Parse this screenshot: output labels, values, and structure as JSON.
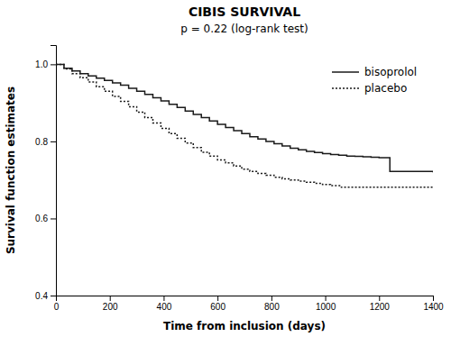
{
  "chart_data": {
    "type": "step",
    "title": "CIBIS SURVIVAL",
    "subtitle": "p = 0.22 (log-rank test)",
    "x_label": "Time from inclusion (days)",
    "y_label": "Survival function estimates",
    "xlim": [
      0,
      1400
    ],
    "ylim": [
      0.4,
      1.05
    ],
    "xticks": [
      0,
      200,
      400,
      600,
      800,
      1000,
      1200,
      1400
    ],
    "yticks": [
      0.4,
      0.6,
      0.8,
      {
        "value": 1,
        "label": "1.0"
      }
    ],
    "grid": false,
    "legend": "upper right",
    "series": [
      {
        "name": "bisoprolol",
        "color": "#1a1a1a",
        "line_style": "solid",
        "x": [
          0,
          30,
          60,
          90,
          120,
          150,
          180,
          210,
          240,
          270,
          300,
          330,
          360,
          390,
          420,
          450,
          480,
          510,
          540,
          570,
          600,
          630,
          660,
          690,
          720,
          750,
          780,
          810,
          840,
          870,
          900,
          930,
          960,
          990,
          1020,
          1050,
          1080,
          1110,
          1140,
          1170,
          1200,
          1240,
          1400
        ],
        "values": [
          1.0,
          0.99,
          0.983,
          0.976,
          0.97,
          0.964,
          0.958,
          0.952,
          0.946,
          0.938,
          0.93,
          0.922,
          0.913,
          0.905,
          0.896,
          0.888,
          0.879,
          0.87,
          0.862,
          0.853,
          0.844,
          0.836,
          0.828,
          0.82,
          0.812,
          0.806,
          0.8,
          0.794,
          0.788,
          0.782,
          0.778,
          0.774,
          0.771,
          0.768,
          0.766,
          0.764,
          0.762,
          0.761,
          0.76,
          0.759,
          0.758,
          0.722,
          0.72
        ]
      },
      {
        "name": "placebo",
        "color": "#1a1a1a",
        "line_style": "dotted",
        "x": [
          0,
          30,
          60,
          90,
          120,
          150,
          180,
          210,
          240,
          270,
          300,
          330,
          360,
          390,
          420,
          450,
          480,
          510,
          540,
          570,
          600,
          630,
          660,
          690,
          720,
          750,
          780,
          810,
          840,
          870,
          900,
          930,
          960,
          990,
          1020,
          1060,
          1400
        ],
        "values": [
          1.0,
          0.988,
          0.976,
          0.965,
          0.954,
          0.942,
          0.93,
          0.917,
          0.904,
          0.89,
          0.876,
          0.862,
          0.848,
          0.834,
          0.82,
          0.808,
          0.796,
          0.784,
          0.772,
          0.762,
          0.752,
          0.744,
          0.736,
          0.728,
          0.722,
          0.717,
          0.712,
          0.707,
          0.703,
          0.7,
          0.697,
          0.694,
          0.691,
          0.688,
          0.685,
          0.681,
          0.678
        ]
      }
    ]
  }
}
